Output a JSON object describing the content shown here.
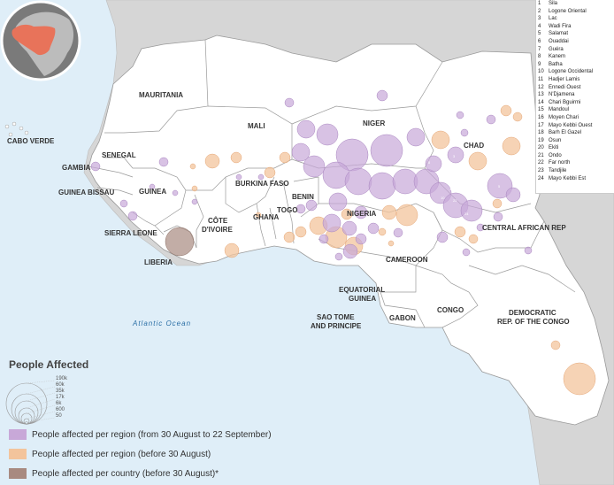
{
  "countries": [
    {
      "name": "MAURITANIA",
      "key": "mauritania"
    },
    {
      "name": "MALI",
      "key": "mali"
    },
    {
      "name": "NIGER",
      "key": "niger"
    },
    {
      "name": "CHAD",
      "key": "chad"
    },
    {
      "name": "SENEGAL",
      "key": "senegal"
    },
    {
      "name": "GAMBIA",
      "key": "gambia"
    },
    {
      "name": "GUINEA BISSAU",
      "key": "guinea-bissau"
    },
    {
      "name": "GUINEA",
      "key": "guinea"
    },
    {
      "name": "SIERRA LEONE",
      "key": "sierra-leone"
    },
    {
      "name": "LIBERIA",
      "key": "liberia"
    },
    {
      "name": "CÔTE",
      "key": "cote-line1"
    },
    {
      "name": "D'IVOIRE",
      "key": "cote-line2"
    },
    {
      "name": "BURKINA FASO",
      "key": "burkina-faso"
    },
    {
      "name": "GHANA",
      "key": "ghana"
    },
    {
      "name": "TOGO",
      "key": "togo"
    },
    {
      "name": "BENIN",
      "key": "benin"
    },
    {
      "name": "NIGERIA",
      "key": "nigeria"
    },
    {
      "name": "CAMEROON",
      "key": "cameroon"
    },
    {
      "name": "CENTRAL AFRICAN REP",
      "key": "car"
    },
    {
      "name": "EQUATORIAL",
      "key": "eq-line1"
    },
    {
      "name": "GUINEA",
      "key": "eq-line2"
    },
    {
      "name": "SAO TOME",
      "key": "stp-line1"
    },
    {
      "name": "AND PRINCIPE",
      "key": "stp-line2"
    },
    {
      "name": "GABON",
      "key": "gabon"
    },
    {
      "name": "CONGO",
      "key": "congo"
    },
    {
      "name": "DEMOCRATIC",
      "key": "drc-line1"
    },
    {
      "name": "REP. OF THE CONGO",
      "key": "drc-line2"
    },
    {
      "name": "CABO VERDE",
      "key": "cabo-verde"
    }
  ],
  "ocean_label": "Atlantic Ocean",
  "region_index": [
    {
      "n": "1",
      "name": "Sila"
    },
    {
      "n": "2",
      "name": "Logone Oriental"
    },
    {
      "n": "3",
      "name": "Lac"
    },
    {
      "n": "4",
      "name": "Wadi Fira"
    },
    {
      "n": "5",
      "name": "Salamat"
    },
    {
      "n": "6",
      "name": "Ouaddai"
    },
    {
      "n": "7",
      "name": "Guéra"
    },
    {
      "n": "8",
      "name": "Kanem"
    },
    {
      "n": "9",
      "name": "Batha"
    },
    {
      "n": "10",
      "name": "Logone Occidental"
    },
    {
      "n": "11",
      "name": "Hadjer Lamis"
    },
    {
      "n": "12",
      "name": "Ennedi Ouest"
    },
    {
      "n": "13",
      "name": "N'Djamena"
    },
    {
      "n": "14",
      "name": "Chari Bguirmi"
    },
    {
      "n": "15",
      "name": "Mandoul"
    },
    {
      "n": "16",
      "name": "Moyen Chari"
    },
    {
      "n": "17",
      "name": "Mayo Kebbi Ouest"
    },
    {
      "n": "18",
      "name": "Barh El Gazel"
    },
    {
      "n": "19",
      "name": "Osun"
    },
    {
      "n": "20",
      "name": "Ekiti"
    },
    {
      "n": "21",
      "name": "Ondo"
    },
    {
      "n": "22",
      "name": "Far north"
    },
    {
      "n": "23",
      "name": "Tandjile"
    },
    {
      "n": "24",
      "name": "Mayo Kebbi Est"
    }
  ],
  "legend": {
    "title": "People Affected",
    "scale": [
      "190k",
      "60k",
      "35k",
      "17k",
      "6k",
      "600",
      "50"
    ],
    "items": [
      {
        "label": "People affected per region (from 30 August to 22 September)",
        "color": "#c8a8d8"
      },
      {
        "label": "People affected per region (before 30 August)",
        "color": "#f3c49c"
      },
      {
        "label": "People affected per country (before 30 August)*",
        "color": "#a88a80"
      }
    ]
  },
  "colors": {
    "ocean": "#dfeef8",
    "land": "#ffffff",
    "outside_land": "#d6d6d6",
    "border": "#9a9a9a",
    "purple": "#c8a8d8",
    "orange": "#f3c49c",
    "brown": "#a88a80",
    "inset_ocean": "#7a7a7a",
    "inset_land": "#bcbcbc",
    "inset_highlight": "#e8735a"
  }
}
